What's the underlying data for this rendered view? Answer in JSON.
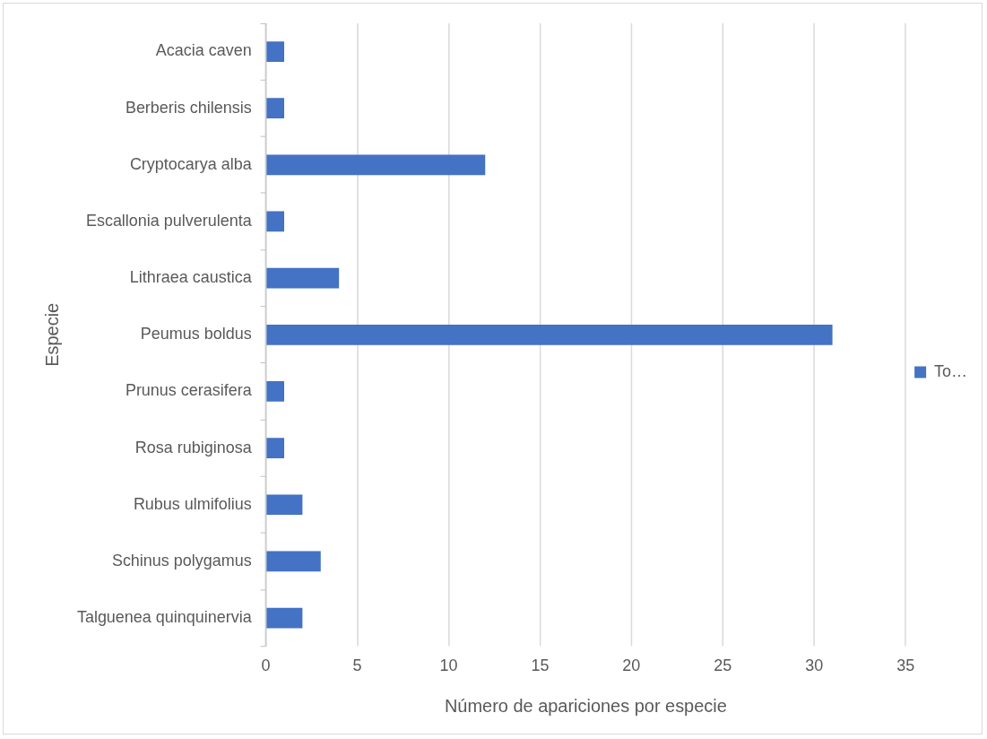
{
  "chart_data": {
    "type": "bar",
    "orientation": "horizontal",
    "xlabel": "Número de apariciones por especie",
    "ylabel": "Especie",
    "categories": [
      "Acacia caven",
      "Berberis chilensis",
      "Cryptocarya alba",
      "Escallonia pulverulenta",
      "Lithraea caustica",
      "Peumus boldus",
      "Prunus cerasifera",
      "Rosa rubiginosa",
      "Rubus ulmifolius",
      "Schinus polygamus",
      "Talguenea quinquinervia"
    ],
    "series": [
      {
        "name": "To…",
        "color": "#4472c4",
        "values": [
          1,
          1,
          12,
          1,
          4,
          31,
          1,
          1,
          2,
          3,
          2
        ]
      }
    ],
    "xlim": [
      0,
      35
    ],
    "xticks": [
      0,
      5,
      10,
      15,
      20,
      25,
      30,
      35
    ],
    "grid": "x",
    "legend": "right"
  }
}
